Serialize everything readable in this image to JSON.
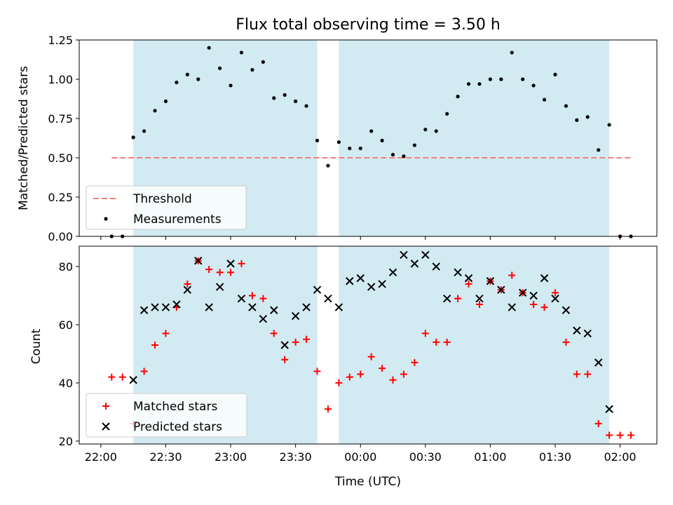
{
  "chart_data": [
    {
      "type": "scatter",
      "title": "Flux total observing time = 3.50 h",
      "xlabel": "",
      "ylabel": "Matched/Predicted stars",
      "ylim": [
        0,
        1.25
      ],
      "y_ticks": [
        "0.00",
        "0.25",
        "0.50",
        "0.75",
        "1.00",
        "1.25"
      ],
      "shaded_spans": [
        [
          "22:15",
          "23:40"
        ],
        [
          "23:50",
          "01:55"
        ]
      ],
      "shade_color": "#add8e6",
      "legend_position": "lower-left",
      "threshold": {
        "name": "Threshold",
        "value": 0.5,
        "x_range": [
          "22:05",
          "02:05"
        ],
        "color": "#f08080"
      },
      "series": [
        {
          "name": "Measurements",
          "color": "#000000",
          "x": [
            "22:05",
            "22:10",
            "22:15",
            "22:20",
            "22:25",
            "22:30",
            "22:35",
            "22:40",
            "22:45",
            "22:50",
            "22:55",
            "23:00",
            "23:05",
            "23:10",
            "23:15",
            "23:20",
            "23:25",
            "23:30",
            "23:35",
            "23:40",
            "23:45",
            "23:50",
            "23:55",
            "00:00",
            "00:05",
            "00:10",
            "00:15",
            "00:20",
            "00:25",
            "00:30",
            "00:35",
            "00:40",
            "00:45",
            "00:50",
            "00:55",
            "01:00",
            "01:05",
            "01:10",
            "01:15",
            "01:20",
            "01:25",
            "01:30",
            "01:35",
            "01:40",
            "01:45",
            "01:50",
            "01:55",
            "02:00",
            "02:05"
          ],
          "y": [
            0.0,
            0.0,
            0.63,
            0.67,
            0.8,
            0.86,
            0.98,
            1.03,
            1.0,
            1.2,
            1.07,
            0.96,
            1.17,
            1.06,
            1.11,
            0.88,
            0.9,
            0.86,
            0.83,
            0.61,
            0.45,
            0.6,
            0.56,
            0.56,
            0.67,
            0.61,
            0.52,
            0.51,
            0.58,
            0.68,
            0.67,
            0.78,
            0.89,
            0.97,
            0.97,
            1.0,
            1.0,
            1.17,
            1.0,
            0.96,
            0.87,
            1.03,
            0.83,
            0.74,
            0.76,
            0.55,
            0.71,
            0.0,
            0.0
          ]
        }
      ]
    },
    {
      "type": "scatter",
      "title": "",
      "xlabel": "Time (UTC)",
      "ylabel": "Count",
      "ylim": [
        19,
        87
      ],
      "y_ticks": [
        "20",
        "40",
        "60",
        "80"
      ],
      "x_ticks": [
        "22:00",
        "22:30",
        "23:00",
        "23:30",
        "00:00",
        "00:30",
        "01:00",
        "01:30",
        "02:00"
      ],
      "xlim": [
        "21:50",
        "02:17"
      ],
      "shaded_spans": [
        [
          "22:15",
          "23:40"
        ],
        [
          "23:50",
          "01:55"
        ]
      ],
      "shade_color": "#add8e6",
      "legend_position": "lower-left",
      "series": [
        {
          "name": "Matched stars",
          "marker": "plus",
          "color": "#ff0000",
          "x": [
            "22:05",
            "22:10",
            "22:15",
            "22:20",
            "22:25",
            "22:30",
            "22:35",
            "22:40",
            "22:45",
            "22:50",
            "22:55",
            "23:00",
            "23:05",
            "23:10",
            "23:15",
            "23:20",
            "23:25",
            "23:30",
            "23:35",
            "23:40",
            "23:45",
            "23:50",
            "23:55",
            "00:00",
            "00:05",
            "00:10",
            "00:15",
            "00:20",
            "00:25",
            "00:30",
            "00:35",
            "00:40",
            "00:45",
            "00:50",
            "00:55",
            "01:00",
            "01:05",
            "01:10",
            "01:15",
            "01:20",
            "01:25",
            "01:30",
            "01:35",
            "01:40",
            "01:45",
            "01:50",
            "01:55",
            "02:00",
            "02:05"
          ],
          "y": [
            42,
            42,
            26,
            44,
            53,
            57,
            66,
            74,
            82,
            79,
            78,
            78,
            81,
            70,
            69,
            57,
            48,
            54,
            55,
            44,
            31,
            40,
            42,
            43,
            49,
            45,
            41,
            43,
            47,
            57,
            54,
            54,
            69,
            74,
            67,
            75,
            72,
            77,
            71,
            67,
            66,
            71,
            54,
            43,
            43,
            26,
            22,
            22,
            22
          ]
        },
        {
          "name": "Predicted stars",
          "marker": "x",
          "color": "#000000",
          "x": [
            "22:15",
            "22:20",
            "22:25",
            "22:30",
            "22:35",
            "22:40",
            "22:45",
            "22:50",
            "22:55",
            "23:00",
            "23:05",
            "23:10",
            "23:15",
            "23:20",
            "23:25",
            "23:30",
            "23:35",
            "23:40",
            "23:45",
            "23:50",
            "23:55",
            "00:00",
            "00:05",
            "00:10",
            "00:15",
            "00:20",
            "00:25",
            "00:30",
            "00:35",
            "00:40",
            "00:45",
            "00:50",
            "00:55",
            "01:00",
            "01:05",
            "01:10",
            "01:15",
            "01:20",
            "01:25",
            "01:30",
            "01:35",
            "01:40",
            "01:45",
            "01:50",
            "01:55"
          ],
          "y": [
            41,
            65,
            66,
            66,
            67,
            72,
            82,
            66,
            73,
            81,
            69,
            66,
            62,
            65,
            53,
            63,
            66,
            72,
            69,
            66,
            75,
            76,
            73,
            74,
            78,
            84,
            81,
            84,
            80,
            69,
            78,
            76,
            69,
            75,
            72,
            66,
            71,
            70,
            76,
            69,
            65,
            58,
            57,
            47,
            31
          ]
        }
      ]
    }
  ]
}
